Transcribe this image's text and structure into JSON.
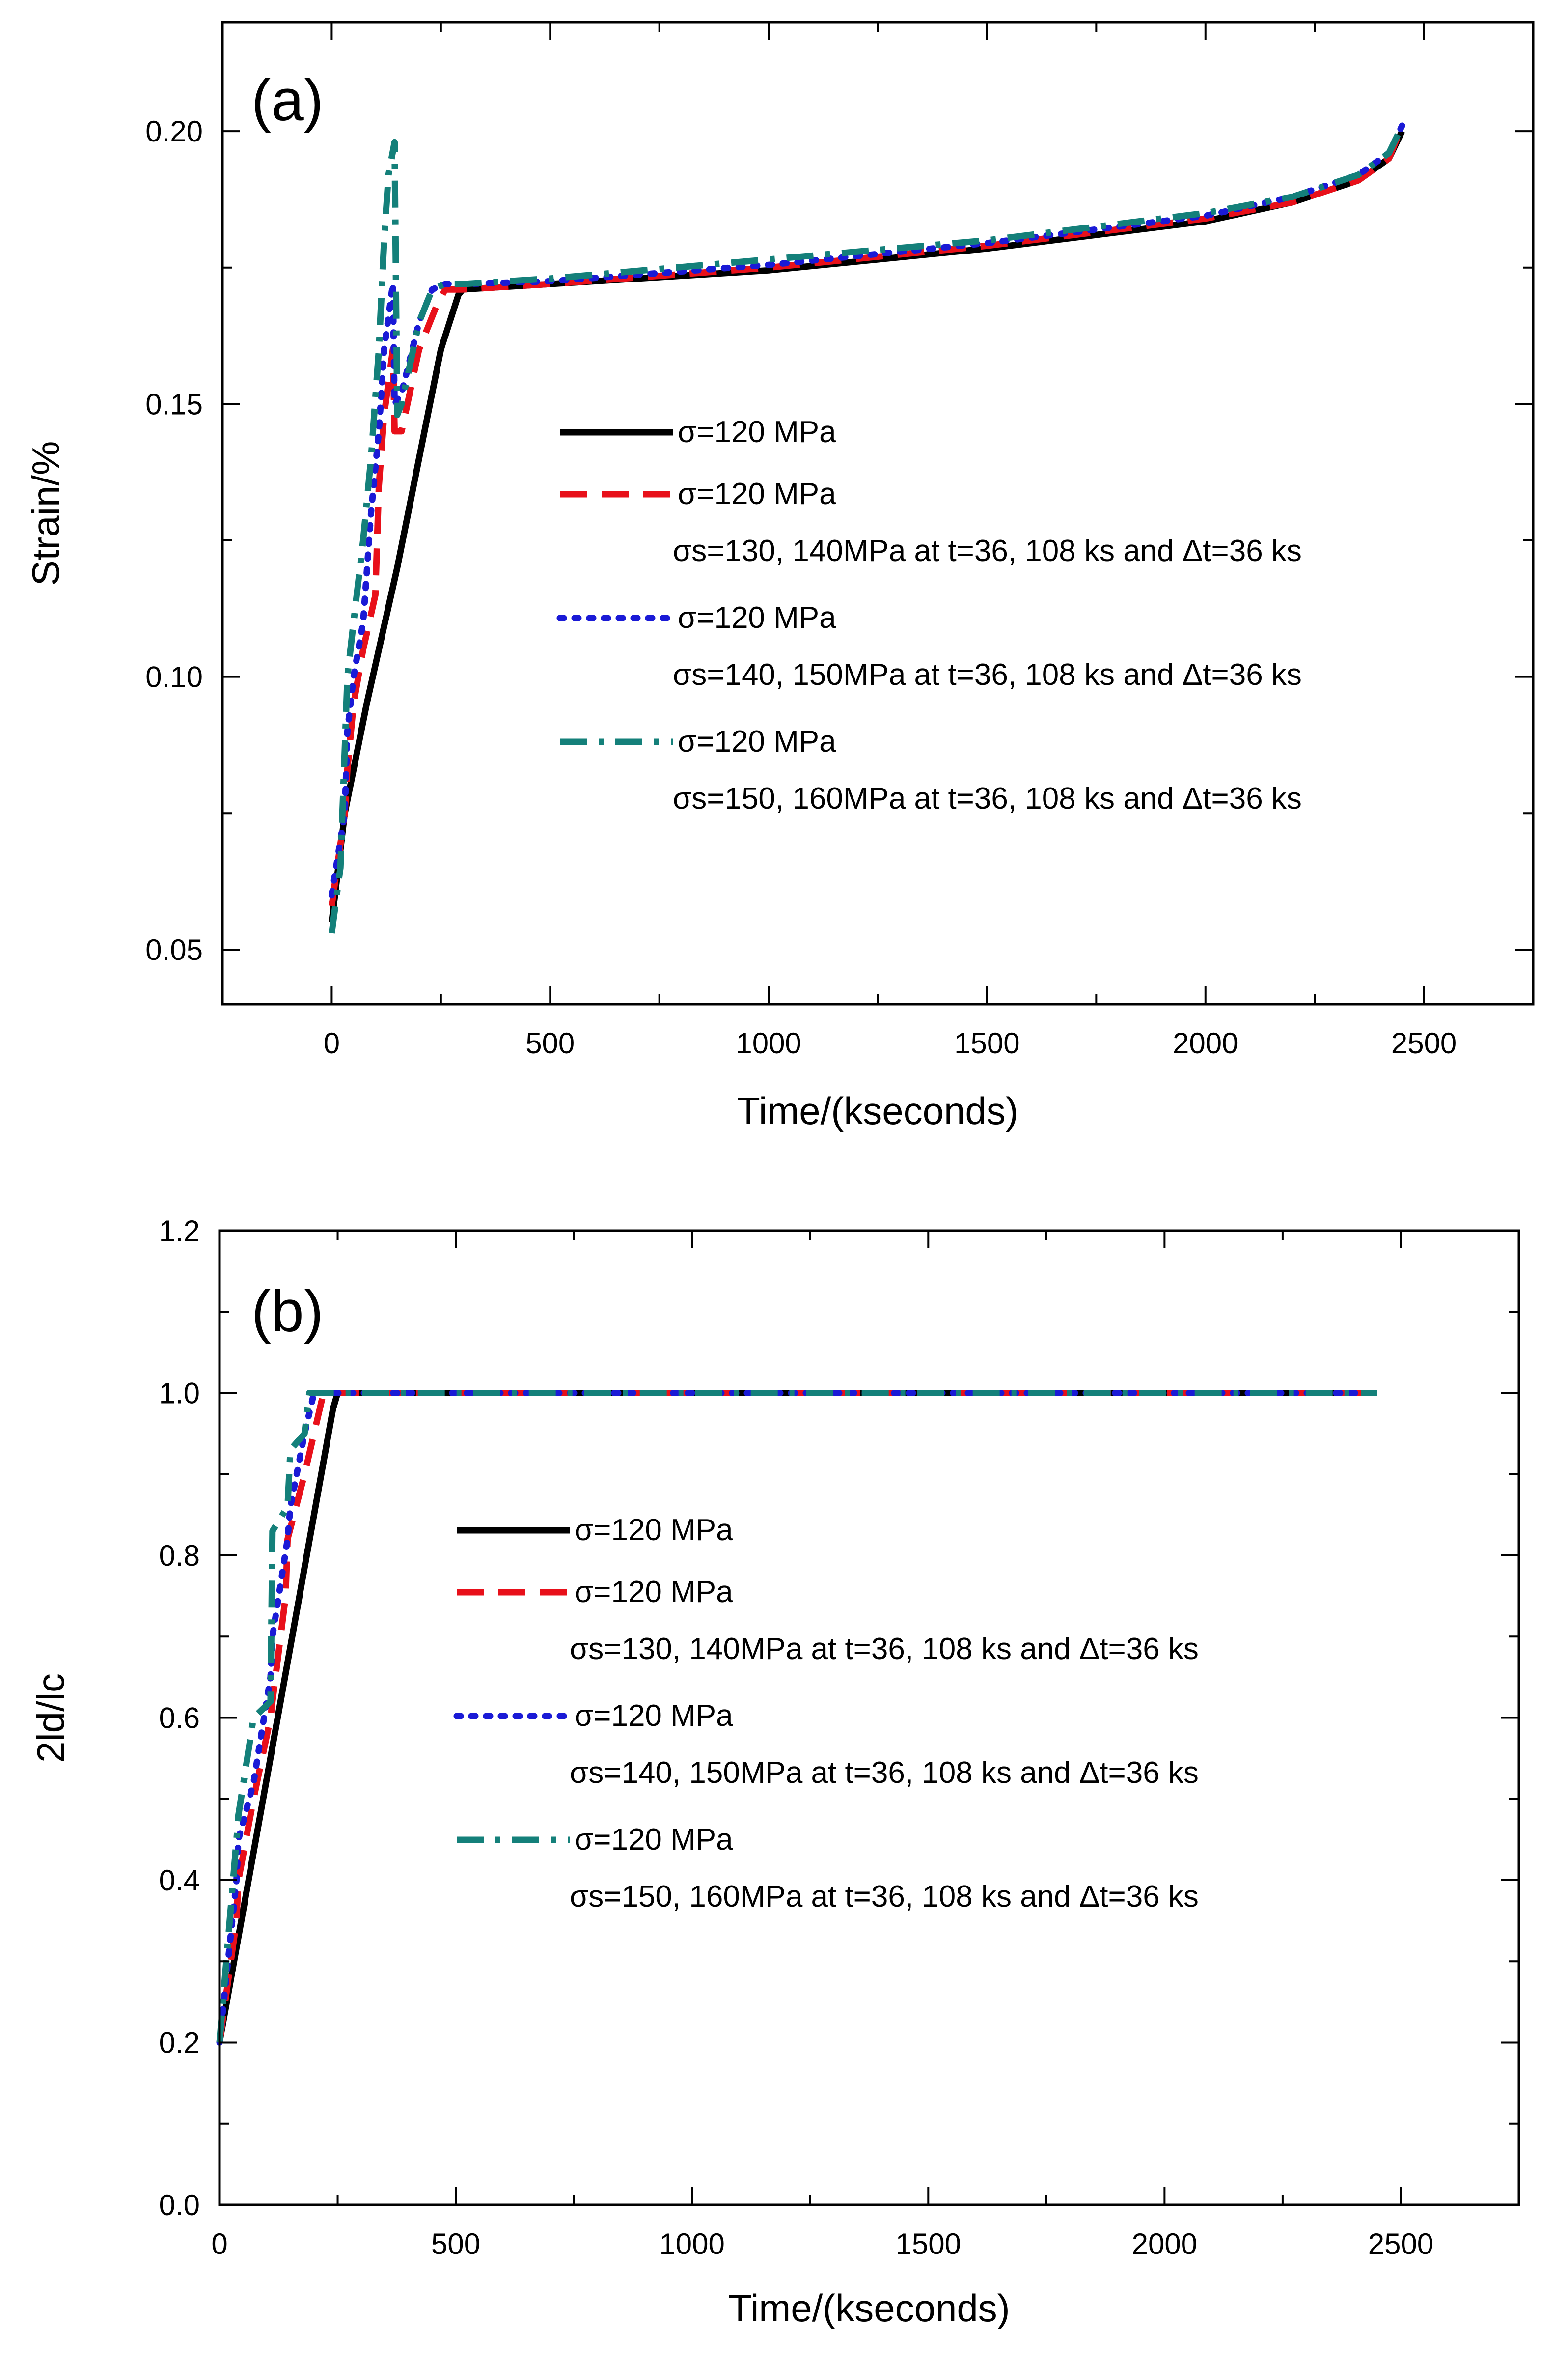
{
  "chart_data": [
    {
      "type": "line",
      "panel_label": "(a)",
      "xlabel": "Time/(kseconds)",
      "ylabel": "Strain/%",
      "xlim": [
        -250,
        2750
      ],
      "ylim": [
        0.04,
        0.22
      ],
      "xticks": [
        0,
        500,
        1000,
        1500,
        2000,
        2500
      ],
      "yticks": [
        0.05,
        0.1,
        0.15,
        0.2
      ],
      "ytick_labels": [
        "0.05",
        "0.10",
        "0.15",
        "0.20"
      ],
      "legend": [
        {
          "label": "σ=120 MPa",
          "sub": ""
        },
        {
          "label": "σ=120 MPa",
          "sub": "σs=130, 140MPa at t=36, 108 ks and Δt=36 ks"
        },
        {
          "label": "σ=120 MPa",
          "sub": "σs=140, 150MPa at t=36, 108 ks and Δt=36 ks"
        },
        {
          "label": "σ=120 MPa",
          "sub": "σs=150, 160MPa at t=36, 108 ks and Δt=36 ks"
        }
      ],
      "series": [
        {
          "name": "σ=120 MPa",
          "color": "#000000",
          "style": "solid",
          "x": [
            0,
            30,
            80,
            150,
            200,
            250,
            270,
            290,
            300,
            500,
            1000,
            1500,
            2000,
            2200,
            2350,
            2420,
            2450
          ],
          "y": [
            0.055,
            0.075,
            0.095,
            0.12,
            0.14,
            0.16,
            0.165,
            0.17,
            0.171,
            0.172,
            0.1745,
            0.1785,
            0.1835,
            0.187,
            0.191,
            0.195,
            0.2
          ]
        },
        {
          "name": "σ=120 MPa; σs=130, 140MPa",
          "color": "#e8101a",
          "style": "dash",
          "x": [
            0,
            30,
            36,
            50,
            72,
            100,
            108,
            120,
            140,
            144,
            160,
            200,
            240,
            260,
            300,
            500,
            1000,
            1500,
            2000,
            2200,
            2350,
            2420,
            2450
          ],
          "y": [
            0.058,
            0.075,
            0.083,
            0.095,
            0.105,
            0.115,
            0.135,
            0.148,
            0.16,
            0.145,
            0.145,
            0.16,
            0.168,
            0.171,
            0.171,
            0.172,
            0.175,
            0.179,
            0.184,
            0.187,
            0.191,
            0.195,
            0.201
          ]
        },
        {
          "name": "σ=120 MPa; σs=140, 150MPa",
          "color": "#1a1ad6",
          "style": "dot",
          "x": [
            0,
            30,
            36,
            50,
            72,
            90,
            108,
            120,
            140,
            144,
            160,
            200,
            230,
            260,
            300,
            500,
            1000,
            1500,
            2000,
            2200,
            2350,
            2420,
            2450
          ],
          "y": [
            0.06,
            0.075,
            0.09,
            0.1,
            0.11,
            0.13,
            0.145,
            0.16,
            0.172,
            0.15,
            0.152,
            0.165,
            0.171,
            0.172,
            0.172,
            0.1725,
            0.1755,
            0.1795,
            0.1845,
            0.188,
            0.192,
            0.196,
            0.201
          ]
        },
        {
          "name": "σ=120 MPa; σs=150, 160MPa",
          "color": "#14807a",
          "style": "dashdot",
          "x": [
            0,
            20,
            36,
            50,
            72,
            90,
            108,
            120,
            130,
            144,
            150,
            160,
            200,
            230,
            260,
            300,
            500,
            1000,
            1500,
            2000,
            2200,
            2350,
            2420,
            2450
          ],
          "y": [
            0.053,
            0.065,
            0.1,
            0.11,
            0.125,
            0.14,
            0.16,
            0.18,
            0.192,
            0.198,
            0.148,
            0.15,
            0.165,
            0.171,
            0.172,
            0.172,
            0.173,
            0.1765,
            0.18,
            0.185,
            0.188,
            0.192,
            0.196,
            0.201
          ]
        }
      ]
    },
    {
      "type": "line",
      "panel_label": "(b)",
      "xlabel": "Time/(kseconds)",
      "ylabel": "2ld/lc",
      "xlim": [
        0,
        2750
      ],
      "ylim": [
        0.0,
        1.2
      ],
      "xticks": [
        0,
        500,
        1000,
        1500,
        2000,
        2500
      ],
      "yticks": [
        0.0,
        0.2,
        0.4,
        0.6,
        0.8,
        1.0,
        1.2
      ],
      "ytick_labels": [
        "0.0",
        "0.2",
        "0.4",
        "0.6",
        "0.8",
        "1.0",
        "1.2"
      ],
      "legend": [
        {
          "label": "σ=120 MPa",
          "sub": ""
        },
        {
          "label": "σ=120 MPa",
          "sub": "σs=130, 140MPa at t=36, 108 ks and Δt=36 ks"
        },
        {
          "label": "σ=120 MPa",
          "sub": "σs=140, 150MPa at t=36, 108 ks and Δt=36 ks"
        },
        {
          "label": "σ=120 MPa",
          "sub": "σs=150, 160MPa at t=36, 108 ks and Δt=36 ks"
        }
      ],
      "series": [
        {
          "name": "σ=120 MPa",
          "color": "#000000",
          "style": "solid",
          "x": [
            0,
            240,
            250,
            2450
          ],
          "y": [
            0.2,
            0.98,
            1.0,
            1.0
          ]
        },
        {
          "name": "σ=120 MPa; σs=130, 140MPa",
          "color": "#e8101a",
          "style": "dash",
          "x": [
            0,
            36,
            40,
            72,
            108,
            112,
            140,
            144,
            180,
            200,
            220,
            2450
          ],
          "y": [
            0.2,
            0.35,
            0.4,
            0.5,
            0.6,
            0.62,
            0.75,
            0.82,
            0.9,
            0.95,
            1.0,
            1.0
          ]
        },
        {
          "name": "σ=120 MPa; σs=140, 150MPa",
          "color": "#1a1ad6",
          "style": "dot",
          "x": [
            0,
            36,
            40,
            72,
            108,
            112,
            144,
            150,
            180,
            200,
            2450
          ],
          "y": [
            0.2,
            0.4,
            0.45,
            0.52,
            0.65,
            0.7,
            0.82,
            0.86,
            0.95,
            1.0,
            1.0
          ]
        },
        {
          "name": "σ=120 MPa; σs=150, 160MPa",
          "color": "#14807a",
          "style": "dashdot",
          "x": [
            0,
            36,
            40,
            72,
            108,
            112,
            144,
            150,
            180,
            190,
            2450
          ],
          "y": [
            0.2,
            0.45,
            0.48,
            0.6,
            0.62,
            0.83,
            0.86,
            0.93,
            0.95,
            1.0,
            1.0
          ]
        }
      ]
    }
  ]
}
